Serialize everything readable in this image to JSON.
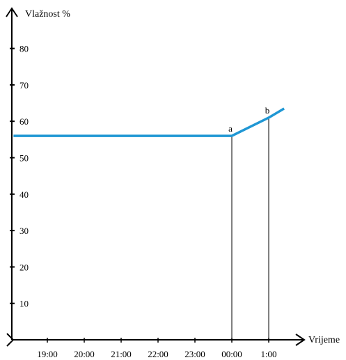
{
  "chart_data": {
    "type": "line",
    "title": "",
    "ylabel": "Vlažnost %",
    "xlabel": "Vrijeme",
    "ylim": [
      0,
      90
    ],
    "y_ticks": [
      10,
      20,
      30,
      40,
      50,
      60,
      70,
      80
    ],
    "x_ticks": [
      "19:00",
      "20:00",
      "21:00",
      "22:00",
      "23:00",
      "00:00",
      "1:00"
    ],
    "grid": false,
    "series": [
      {
        "color": "#1f97d4",
        "points": [
          {
            "x": "18:05",
            "y": 56
          },
          {
            "x": "00:00",
            "y": 56
          },
          {
            "x": "1:00",
            "y": 61
          },
          {
            "x": "1:25",
            "y": 63.5
          }
        ]
      }
    ],
    "markers": [
      {
        "label": "a",
        "x": "00:00",
        "y": 56
      },
      {
        "label": "b",
        "x": "1:00",
        "y": 61
      }
    ]
  }
}
